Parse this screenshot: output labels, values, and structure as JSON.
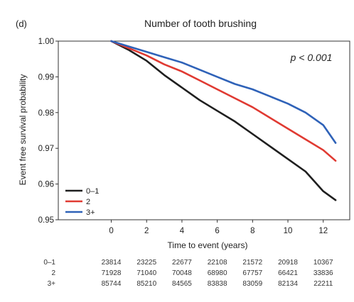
{
  "chart_data": {
    "type": "line",
    "panel_label": "(d)",
    "title": "Number of tooth brushing",
    "xlabel": "Time to event (years)",
    "ylabel": "Event free survival probability",
    "annotation": "p < 0.001",
    "xlim": [
      -3,
      13.5
    ],
    "ylim": [
      0.95,
      1.0
    ],
    "x_ticks": [
      0,
      2,
      4,
      6,
      8,
      10,
      12
    ],
    "x_tick_labels": [
      "0",
      "2",
      "4",
      "6",
      "8",
      "10",
      "12"
    ],
    "y_ticks": [
      1.0,
      0.99,
      0.98,
      0.97,
      0.96,
      0.95
    ],
    "y_tick_labels": [
      "1.00",
      "0.99",
      "0.98",
      "0.97",
      "0.96",
      "0.95"
    ],
    "grid": false,
    "legend_position": "bottom-left",
    "series": [
      {
        "name": "0–1",
        "color": "#1f1f1f",
        "x": [
          0,
          1,
          2,
          3,
          4,
          5,
          6,
          7,
          8,
          9,
          10,
          11,
          12,
          12.7
        ],
        "values": [
          1.0,
          0.9975,
          0.9945,
          0.9905,
          0.987,
          0.9835,
          0.9805,
          0.9775,
          0.974,
          0.9705,
          0.967,
          0.9635,
          0.958,
          0.9555
        ]
      },
      {
        "name": "2",
        "color": "#e03a32",
        "x": [
          0,
          1,
          2,
          3,
          4,
          5,
          6,
          7,
          8,
          9,
          10,
          11,
          12,
          12.7
        ],
        "values": [
          1.0,
          0.998,
          0.996,
          0.9935,
          0.9915,
          0.989,
          0.9865,
          0.984,
          0.9815,
          0.9785,
          0.9755,
          0.9725,
          0.9695,
          0.9665
        ]
      },
      {
        "name": "3+",
        "color": "#2f62b8",
        "x": [
          0,
          1,
          2,
          3,
          4,
          5,
          6,
          7,
          8,
          9,
          10,
          11,
          12,
          12.7
        ],
        "values": [
          1.0,
          0.9985,
          0.997,
          0.9955,
          0.994,
          0.992,
          0.99,
          0.988,
          0.9865,
          0.9845,
          0.9825,
          0.98,
          0.9765,
          0.9715
        ]
      }
    ],
    "risk_table": {
      "rows": [
        {
          "label": "0–1",
          "counts": [
            "23814",
            "23225",
            "22677",
            "22108",
            "21572",
            "20918",
            "10367"
          ]
        },
        {
          "label": "2",
          "counts": [
            "71928",
            "71040",
            "70048",
            "68980",
            "67757",
            "66421",
            "33836"
          ]
        },
        {
          "label": "3+",
          "counts": [
            "85744",
            "85210",
            "84565",
            "83838",
            "83059",
            "82134",
            "22211"
          ]
        }
      ]
    }
  }
}
